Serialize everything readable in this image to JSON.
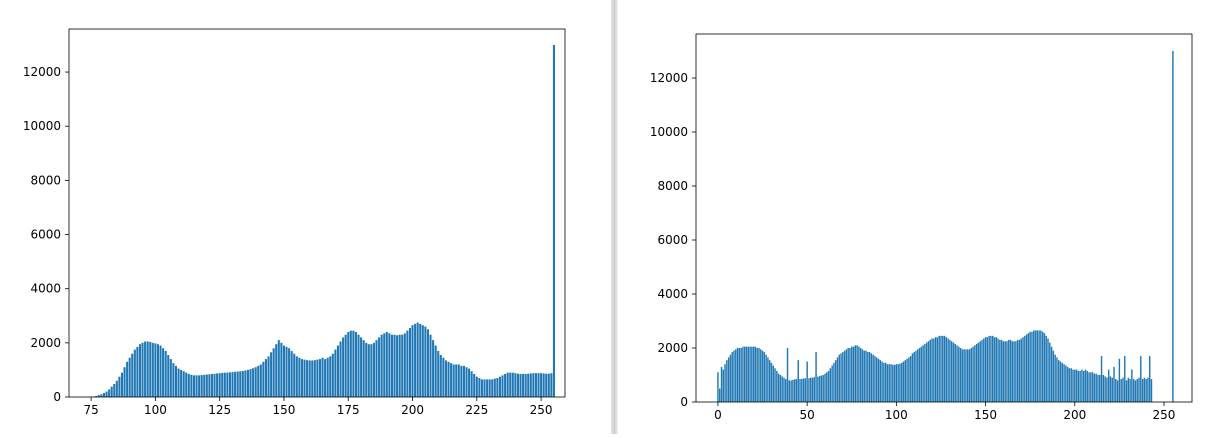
{
  "chart_data": [
    {
      "type": "bar",
      "color": "#1f77b4",
      "x": [
        76,
        77,
        78,
        79,
        80,
        81,
        82,
        83,
        84,
        85,
        86,
        87,
        88,
        89,
        90,
        91,
        92,
        93,
        94,
        95,
        96,
        97,
        98,
        99,
        100,
        101,
        102,
        103,
        104,
        105,
        106,
        107,
        108,
        109,
        110,
        111,
        112,
        113,
        114,
        115,
        116,
        117,
        118,
        119,
        120,
        121,
        122,
        123,
        124,
        125,
        126,
        127,
        128,
        129,
        130,
        131,
        132,
        133,
        134,
        135,
        136,
        137,
        138,
        139,
        140,
        141,
        142,
        143,
        144,
        145,
        146,
        147,
        148,
        149,
        150,
        151,
        152,
        153,
        154,
        155,
        156,
        157,
        158,
        159,
        160,
        161,
        162,
        163,
        164,
        165,
        166,
        167,
        168,
        169,
        170,
        171,
        172,
        173,
        174,
        175,
        176,
        177,
        178,
        179,
        180,
        181,
        182,
        183,
        184,
        185,
        186,
        187,
        188,
        189,
        190,
        191,
        192,
        193,
        194,
        195,
        196,
        197,
        198,
        199,
        200,
        201,
        202,
        203,
        204,
        205,
        206,
        207,
        208,
        209,
        210,
        211,
        212,
        213,
        214,
        215,
        216,
        217,
        218,
        219,
        220,
        221,
        222,
        223,
        224,
        225,
        226,
        227,
        228,
        229,
        230,
        231,
        232,
        233,
        234,
        235,
        236,
        237,
        238,
        239,
        240,
        241,
        242,
        243,
        244,
        245,
        246,
        247,
        248,
        249,
        250,
        251,
        252,
        253,
        254,
        255
      ],
      "values": [
        20,
        40,
        70,
        100,
        150,
        200,
        280,
        380,
        480,
        600,
        750,
        900,
        1100,
        1300,
        1450,
        1600,
        1750,
        1850,
        1950,
        2000,
        2050,
        2050,
        2030,
        2000,
        1980,
        1950,
        1900,
        1800,
        1700,
        1550,
        1400,
        1250,
        1150,
        1050,
        1000,
        950,
        900,
        850,
        820,
        800,
        800,
        800,
        810,
        820,
        830,
        840,
        850,
        860,
        870,
        880,
        890,
        900,
        900,
        910,
        920,
        930,
        940,
        950,
        960,
        980,
        1000,
        1030,
        1060,
        1100,
        1150,
        1200,
        1300,
        1400,
        1500,
        1650,
        1800,
        1950,
        2100,
        2000,
        1900,
        1850,
        1800,
        1700,
        1600,
        1500,
        1450,
        1400,
        1380,
        1360,
        1350,
        1350,
        1360,
        1380,
        1400,
        1450,
        1400,
        1450,
        1500,
        1600,
        1750,
        1900,
        2050,
        2200,
        2300,
        2400,
        2450,
        2450,
        2400,
        2300,
        2200,
        2100,
        2000,
        1950,
        1950,
        2000,
        2100,
        2200,
        2300,
        2350,
        2400,
        2350,
        2300,
        2300,
        2280,
        2300,
        2300,
        2350,
        2450,
        2550,
        2650,
        2700,
        2750,
        2700,
        2650,
        2600,
        2500,
        2300,
        2100,
        1900,
        1700,
        1550,
        1450,
        1350,
        1300,
        1250,
        1200,
        1200,
        1200,
        1150,
        1150,
        1100,
        1050,
        950,
        850,
        750,
        700,
        650,
        650,
        650,
        650,
        650,
        680,
        700,
        750,
        800,
        850,
        900,
        900,
        900,
        880,
        860,
        850,
        850,
        850,
        860,
        870,
        880,
        880,
        880,
        880,
        870,
        860,
        860,
        880,
        13000
      ],
      "xlim": [
        66.4,
        259.3
      ],
      "ylim": [
        0,
        13590
      ],
      "xticks": [
        75,
        100,
        125,
        150,
        175,
        200,
        225,
        250
      ],
      "yticks": [
        0,
        2000,
        4000,
        6000,
        8000,
        10000,
        12000
      ]
    },
    {
      "type": "bar",
      "color": "#1f77b4",
      "x": [
        0,
        1,
        2,
        3,
        4,
        5,
        6,
        7,
        8,
        9,
        10,
        11,
        12,
        13,
        14,
        15,
        16,
        17,
        18,
        19,
        20,
        21,
        22,
        23,
        24,
        25,
        26,
        27,
        28,
        29,
        30,
        31,
        32,
        33,
        34,
        35,
        36,
        37,
        38,
        39,
        40,
        41,
        42,
        43,
        44,
        45,
        46,
        47,
        48,
        49,
        50,
        51,
        52,
        53,
        54,
        55,
        56,
        57,
        58,
        59,
        60,
        61,
        62,
        63,
        64,
        65,
        66,
        67,
        68,
        69,
        70,
        71,
        72,
        73,
        74,
        75,
        76,
        77,
        78,
        79,
        80,
        81,
        82,
        83,
        84,
        85,
        86,
        87,
        88,
        89,
        90,
        91,
        92,
        93,
        94,
        95,
        96,
        97,
        98,
        99,
        100,
        101,
        102,
        103,
        104,
        105,
        106,
        107,
        108,
        109,
        110,
        111,
        112,
        113,
        114,
        115,
        116,
        117,
        118,
        119,
        120,
        121,
        122,
        123,
        124,
        125,
        126,
        127,
        128,
        129,
        130,
        131,
        132,
        133,
        134,
        135,
        136,
        137,
        138,
        139,
        140,
        141,
        142,
        143,
        144,
        145,
        146,
        147,
        148,
        149,
        150,
        151,
        152,
        153,
        154,
        155,
        156,
        157,
        158,
        159,
        160,
        161,
        162,
        163,
        164,
        165,
        166,
        167,
        168,
        169,
        170,
        171,
        172,
        173,
        174,
        175,
        176,
        177,
        178,
        179,
        180,
        181,
        182,
        183,
        184,
        185,
        186,
        187,
        188,
        189,
        190,
        191,
        192,
        193,
        194,
        195,
        196,
        197,
        198,
        199,
        200,
        201,
        202,
        203,
        204,
        205,
        206,
        207,
        208,
        209,
        210,
        211,
        212,
        213,
        214,
        215,
        216,
        217,
        218,
        219,
        220,
        221,
        222,
        223,
        224,
        225,
        226,
        227,
        228,
        229,
        230,
        231,
        232,
        233,
        234,
        235,
        236,
        237,
        238,
        239,
        240,
        241,
        242,
        243,
        255
      ],
      "values": [
        1100,
        500,
        1300,
        1200,
        1400,
        1550,
        1650,
        1750,
        1850,
        1900,
        1950,
        2000,
        2000,
        2000,
        2050,
        2050,
        2050,
        2050,
        2050,
        2050,
        2050,
        2050,
        2000,
        2000,
        1950,
        1900,
        1850,
        1750,
        1650,
        1550,
        1450,
        1350,
        1250,
        1150,
        1050,
        1000,
        950,
        900,
        850,
        2000,
        800,
        800,
        820,
        840,
        850,
        1550,
        850,
        860,
        870,
        880,
        1500,
        880,
        900,
        900,
        920,
        1850,
        940,
        960,
        980,
        1000,
        1050,
        1100,
        1150,
        1250,
        1350,
        1450,
        1550,
        1650,
        1750,
        1800,
        1850,
        1900,
        1950,
        2000,
        2000,
        2050,
        2050,
        2100,
        2100,
        2050,
        2000,
        1950,
        1900,
        1900,
        1850,
        1850,
        1800,
        1750,
        1700,
        1650,
        1600,
        1550,
        1500,
        1450,
        1450,
        1400,
        1400,
        1400,
        1380,
        1380,
        1400,
        1400,
        1420,
        1450,
        1500,
        1550,
        1600,
        1650,
        1700,
        1800,
        1850,
        1900,
        1950,
        2000,
        2050,
        2100,
        2150,
        2200,
        2250,
        2300,
        2350,
        2350,
        2400,
        2400,
        2450,
        2450,
        2450,
        2450,
        2400,
        2350,
        2300,
        2250,
        2200,
        2150,
        2100,
        2050,
        2000,
        1950,
        1950,
        1950,
        1950,
        1950,
        2000,
        2050,
        2100,
        2150,
        2200,
        2250,
        2300,
        2350,
        2400,
        2400,
        2450,
        2450,
        2450,
        2400,
        2400,
        2350,
        2300,
        2300,
        2250,
        2250,
        2250,
        2300,
        2300,
        2250,
        2250,
        2250,
        2300,
        2300,
        2350,
        2400,
        2450,
        2500,
        2550,
        2600,
        2600,
        2650,
        2650,
        2650,
        2650,
        2650,
        2600,
        2550,
        2450,
        2350,
        2200,
        2050,
        1900,
        1750,
        1650,
        1550,
        1500,
        1450,
        1400,
        1350,
        1300,
        1250,
        1250,
        1200,
        1200,
        1200,
        1150,
        1150,
        1200,
        1150,
        1200,
        1150,
        1100,
        1100,
        1100,
        1050,
        1050,
        1000,
        1000,
        1700,
        1000,
        950,
        900,
        1200,
        950,
        900,
        1300,
        850,
        800,
        1600,
        850,
        900,
        1700,
        800,
        900,
        850,
        1200,
        850,
        800,
        850,
        900,
        1700,
        850,
        900,
        850,
        900,
        1700,
        850,
        13000
      ],
      "xlim": [
        -12.3,
        265.7
      ],
      "ylim": [
        0,
        13630
      ],
      "xticks": [
        0,
        50,
        100,
        150,
        200,
        250
      ],
      "yticks": [
        0,
        2000,
        4000,
        6000,
        8000,
        10000,
        12000
      ]
    }
  ]
}
